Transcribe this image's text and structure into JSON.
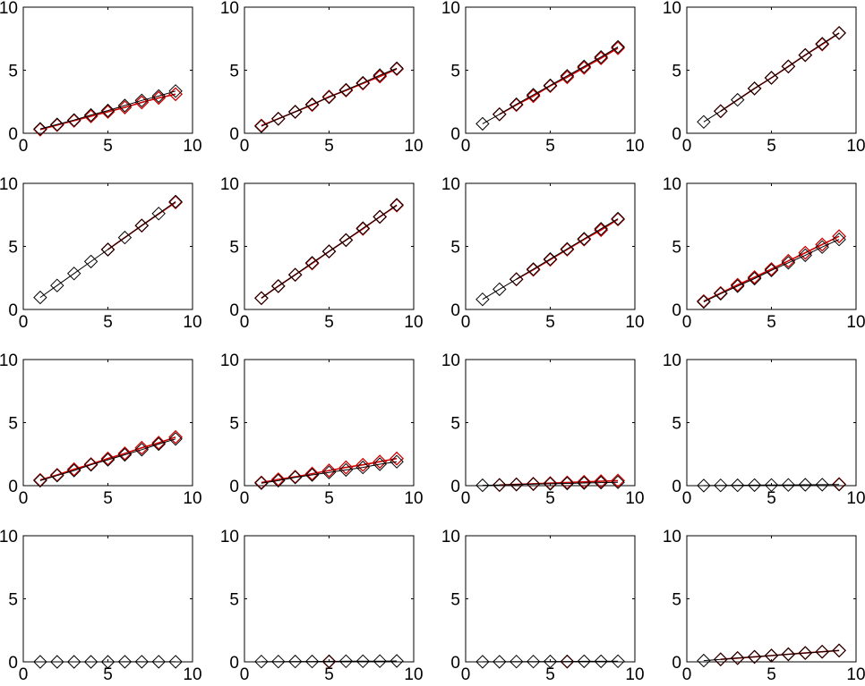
{
  "figure": {
    "layout": "4x4 grid of small multiples",
    "colors": {
      "background": "#ffffff",
      "axes": "#000000",
      "series_black": "#000000",
      "series_red": "#cc0000"
    },
    "marker": "diamond"
  },
  "chart_data": [
    {
      "type": "line",
      "grid": false,
      "xlim": [
        0,
        10
      ],
      "ylim": [
        0,
        10
      ],
      "x_ticks": [
        "0",
        "5",
        "10"
      ],
      "y_ticks": [
        "0",
        "5",
        "10"
      ],
      "x": [
        1,
        2,
        3,
        4,
        5,
        6,
        7,
        8,
        9
      ],
      "series": [
        {
          "color": "#000000",
          "values": [
            0.35,
            0.7,
            1.05,
            1.45,
            1.8,
            2.2,
            2.6,
            2.95,
            3.35
          ]
        },
        {
          "color": "#cc0000",
          "values": [
            0.3,
            0.65,
            1.0,
            1.35,
            1.7,
            2.05,
            2.45,
            2.8,
            3.1
          ]
        }
      ]
    },
    {
      "type": "line",
      "grid": false,
      "xlim": [
        0,
        10
      ],
      "ylim": [
        0,
        10
      ],
      "x_ticks": [
        "0",
        "5",
        "10"
      ],
      "y_ticks": [
        "0",
        "5",
        "10"
      ],
      "x": [
        1,
        2,
        3,
        4,
        5,
        6,
        7,
        8,
        9
      ],
      "series": [
        {
          "color": "#000000",
          "values": [
            0.55,
            1.15,
            1.7,
            2.3,
            2.85,
            3.45,
            4.0,
            4.6,
            5.15
          ]
        },
        {
          "color": "#cc0000",
          "values": [
            0.6,
            1.15,
            1.7,
            2.25,
            2.9,
            3.4,
            3.95,
            4.5,
            5.1
          ]
        }
      ]
    },
    {
      "type": "line",
      "grid": false,
      "xlim": [
        0,
        10
      ],
      "ylim": [
        0,
        10
      ],
      "x_ticks": [
        "0",
        "5",
        "10"
      ],
      "y_ticks": [
        "0",
        "5",
        "10"
      ],
      "x": [
        1,
        2,
        3,
        4,
        5,
        6,
        7,
        8,
        9
      ],
      "series": [
        {
          "color": "#000000",
          "values": [
            0.75,
            1.5,
            2.3,
            3.05,
            3.8,
            4.55,
            5.3,
            6.05,
            6.85
          ]
        },
        {
          "color": "#cc0000",
          "values": [
            null,
            1.5,
            2.25,
            2.95,
            3.75,
            4.45,
            5.2,
            5.95,
            6.75
          ]
        }
      ]
    },
    {
      "type": "line",
      "grid": false,
      "xlim": [
        0,
        10
      ],
      "ylim": [
        0,
        10
      ],
      "x_ticks": [
        "0",
        "5",
        "10"
      ],
      "y_ticks": [
        "0",
        "5",
        "10"
      ],
      "x": [
        1,
        2,
        3,
        4,
        5,
        6,
        7,
        8,
        9
      ],
      "series": [
        {
          "color": "#000000",
          "values": [
            0.9,
            1.75,
            2.65,
            3.55,
            4.4,
            5.3,
            6.2,
            7.1,
            7.95
          ]
        },
        {
          "color": "#cc0000",
          "values": [
            null,
            1.75,
            null,
            3.55,
            4.4,
            5.3,
            6.2,
            7.05,
            7.95
          ]
        }
      ]
    },
    {
      "type": "line",
      "grid": false,
      "xlim": [
        0,
        10
      ],
      "ylim": [
        0,
        10
      ],
      "x_ticks": [
        "0",
        "5",
        "10"
      ],
      "y_ticks": [
        "0",
        "5",
        "10"
      ],
      "x": [
        1,
        2,
        3,
        4,
        5,
        6,
        7,
        8,
        9
      ],
      "series": [
        {
          "color": "#000000",
          "values": [
            0.95,
            1.9,
            2.85,
            3.8,
            4.75,
            5.7,
            6.65,
            7.6,
            8.55
          ]
        },
        {
          "color": "#cc0000",
          "values": [
            null,
            null,
            null,
            null,
            4.75,
            null,
            6.65,
            null,
            8.5
          ]
        }
      ]
    },
    {
      "type": "line",
      "grid": false,
      "xlim": [
        0,
        10
      ],
      "ylim": [
        0,
        10
      ],
      "x_ticks": [
        "0",
        "5",
        "10"
      ],
      "y_ticks": [
        "0",
        "5",
        "10"
      ],
      "x": [
        1,
        2,
        3,
        4,
        5,
        6,
        7,
        8,
        9
      ],
      "series": [
        {
          "color": "#000000",
          "values": [
            0.9,
            1.85,
            2.75,
            3.7,
            4.6,
            5.5,
            6.45,
            7.35,
            8.3
          ]
        },
        {
          "color": "#cc0000",
          "values": [
            0.9,
            1.85,
            2.75,
            3.65,
            4.6,
            5.5,
            6.4,
            7.35,
            8.25
          ]
        }
      ]
    },
    {
      "type": "line",
      "grid": false,
      "xlim": [
        0,
        10
      ],
      "ylim": [
        0,
        10
      ],
      "x_ticks": [
        "0",
        "5",
        "10"
      ],
      "y_ticks": [
        "0",
        "5",
        "10"
      ],
      "x": [
        1,
        2,
        3,
        4,
        5,
        6,
        7,
        8,
        9
      ],
      "series": [
        {
          "color": "#000000",
          "values": [
            0.8,
            1.6,
            2.4,
            3.2,
            4.0,
            4.8,
            5.6,
            6.4,
            7.2
          ]
        },
        {
          "color": "#cc0000",
          "values": [
            null,
            null,
            2.4,
            3.15,
            3.95,
            4.75,
            5.55,
            6.3,
            7.15
          ]
        }
      ]
    },
    {
      "type": "line",
      "grid": false,
      "xlim": [
        0,
        10
      ],
      "ylim": [
        0,
        10
      ],
      "x_ticks": [
        "0",
        "5",
        "10"
      ],
      "y_ticks": [
        "0",
        "5",
        "10"
      ],
      "x": [
        1,
        2,
        3,
        4,
        5,
        6,
        7,
        8,
        9
      ],
      "series": [
        {
          "color": "#000000",
          "values": [
            0.6,
            1.25,
            1.85,
            2.45,
            3.1,
            3.7,
            4.3,
            4.95,
            5.55
          ]
        },
        {
          "color": "#cc0000",
          "values": [
            0.65,
            1.3,
            1.95,
            2.55,
            3.2,
            3.85,
            4.5,
            5.15,
            5.8
          ]
        }
      ]
    },
    {
      "type": "line",
      "grid": false,
      "xlim": [
        0,
        10
      ],
      "ylim": [
        0,
        10
      ],
      "x_ticks": [
        "0",
        "5",
        "10"
      ],
      "y_ticks": [
        "0",
        "5",
        "10"
      ],
      "x": [
        1,
        2,
        3,
        4,
        5,
        6,
        7,
        8,
        9
      ],
      "series": [
        {
          "color": "#000000",
          "values": [
            0.4,
            0.8,
            1.2,
            1.65,
            2.05,
            2.45,
            2.85,
            3.3,
            3.7
          ]
        },
        {
          "color": "#cc0000",
          "values": [
            0.45,
            0.85,
            1.3,
            1.7,
            2.15,
            2.55,
            3.0,
            3.4,
            3.85
          ]
        }
      ]
    },
    {
      "type": "line",
      "grid": false,
      "xlim": [
        0,
        10
      ],
      "ylim": [
        0,
        10
      ],
      "x_ticks": [
        "0",
        "5",
        "10"
      ],
      "y_ticks": [
        "0",
        "5",
        "10"
      ],
      "x": [
        1,
        2,
        3,
        4,
        5,
        6,
        7,
        8,
        9
      ],
      "series": [
        {
          "color": "#000000",
          "values": [
            0.2,
            0.4,
            0.65,
            0.85,
            1.05,
            1.25,
            1.45,
            1.7,
            1.9
          ]
        },
        {
          "color": "#cc0000",
          "values": [
            0.25,
            0.5,
            0.7,
            0.95,
            1.2,
            1.45,
            1.65,
            1.9,
            2.15
          ]
        }
      ]
    },
    {
      "type": "line",
      "grid": false,
      "xlim": [
        0,
        10
      ],
      "ylim": [
        0,
        10
      ],
      "x_ticks": [
        "0",
        "5",
        "10"
      ],
      "y_ticks": [
        "0",
        "5",
        "10"
      ],
      "x": [
        1,
        2,
        3,
        4,
        5,
        6,
        7,
        8,
        9
      ],
      "series": [
        {
          "color": "#000000",
          "values": [
            0.03,
            0.06,
            0.09,
            0.12,
            0.15,
            0.18,
            0.21,
            0.24,
            0.27
          ]
        },
        {
          "color": "#cc0000",
          "values": [
            null,
            0.05,
            0.1,
            0.15,
            0.2,
            0.25,
            0.3,
            0.35,
            0.4
          ]
        }
      ]
    },
    {
      "type": "line",
      "grid": false,
      "xlim": [
        0,
        10
      ],
      "ylim": [
        0,
        10
      ],
      "x_ticks": [
        "0",
        "5",
        "10"
      ],
      "y_ticks": [
        "0",
        "5",
        "10"
      ],
      "x": [
        1,
        2,
        3,
        4,
        5,
        6,
        7,
        8,
        9
      ],
      "series": [
        {
          "color": "#000000",
          "values": [
            0.01,
            0.02,
            0.03,
            0.04,
            0.05,
            0.06,
            0.07,
            0.08,
            0.09
          ]
        },
        {
          "color": "#cc0000",
          "values": [
            null,
            null,
            null,
            null,
            null,
            null,
            null,
            null,
            0.12
          ]
        }
      ]
    },
    {
      "type": "line",
      "grid": false,
      "xlim": [
        0,
        10
      ],
      "ylim": [
        0,
        10
      ],
      "x_ticks": [
        "0",
        "5",
        "10"
      ],
      "y_ticks": [
        "0",
        "5",
        "10"
      ],
      "x": [
        1,
        2,
        3,
        4,
        5,
        6,
        7,
        8,
        9
      ],
      "series": [
        {
          "color": "#000000",
          "values": [
            0.0,
            0.0,
            0.0,
            0.0,
            0.0,
            0.01,
            0.01,
            0.01,
            0.01
          ]
        }
      ]
    },
    {
      "type": "line",
      "grid": false,
      "xlim": [
        0,
        10
      ],
      "ylim": [
        0,
        10
      ],
      "x_ticks": [
        "0",
        "5",
        "10"
      ],
      "y_ticks": [
        "0",
        "5",
        "10"
      ],
      "x": [
        1,
        2,
        3,
        4,
        5,
        6,
        7,
        8,
        9
      ],
      "series": [
        {
          "color": "#000000",
          "values": [
            0.02,
            0.02,
            0.03,
            0.03,
            0.04,
            0.05,
            0.05,
            0.06,
            0.07
          ]
        },
        {
          "color": "#cc0000",
          "values": [
            null,
            null,
            null,
            null,
            0.02,
            null,
            null,
            null,
            null
          ]
        }
      ]
    },
    {
      "type": "line",
      "grid": false,
      "xlim": [
        0,
        10
      ],
      "ylim": [
        0,
        10
      ],
      "x_ticks": [
        "0",
        "5",
        "10"
      ],
      "y_ticks": [
        "0",
        "5",
        "10"
      ],
      "x": [
        1,
        2,
        3,
        4,
        5,
        6,
        7,
        8,
        9
      ],
      "series": [
        {
          "color": "#000000",
          "values": [
            0.01,
            0.01,
            0.02,
            0.02,
            0.03,
            0.03,
            0.04,
            0.04,
            0.05
          ]
        },
        {
          "color": "#cc0000",
          "values": [
            null,
            null,
            null,
            null,
            null,
            0.02,
            null,
            null,
            null
          ]
        }
      ]
    },
    {
      "type": "line",
      "grid": false,
      "xlim": [
        0,
        10
      ],
      "ylim": [
        0,
        10
      ],
      "x_ticks": [
        "0",
        "5",
        "10"
      ],
      "y_ticks": [
        "0",
        "5",
        "10"
      ],
      "x": [
        1,
        2,
        3,
        4,
        5,
        6,
        7,
        8,
        9
      ],
      "series": [
        {
          "color": "#000000",
          "values": [
            0.1,
            0.2,
            0.3,
            0.4,
            0.5,
            0.6,
            0.7,
            0.8,
            0.9
          ]
        },
        {
          "color": "#cc0000",
          "values": [
            null,
            0.2,
            0.3,
            0.4,
            0.5,
            0.6,
            0.7,
            0.8,
            0.9
          ]
        }
      ]
    }
  ]
}
